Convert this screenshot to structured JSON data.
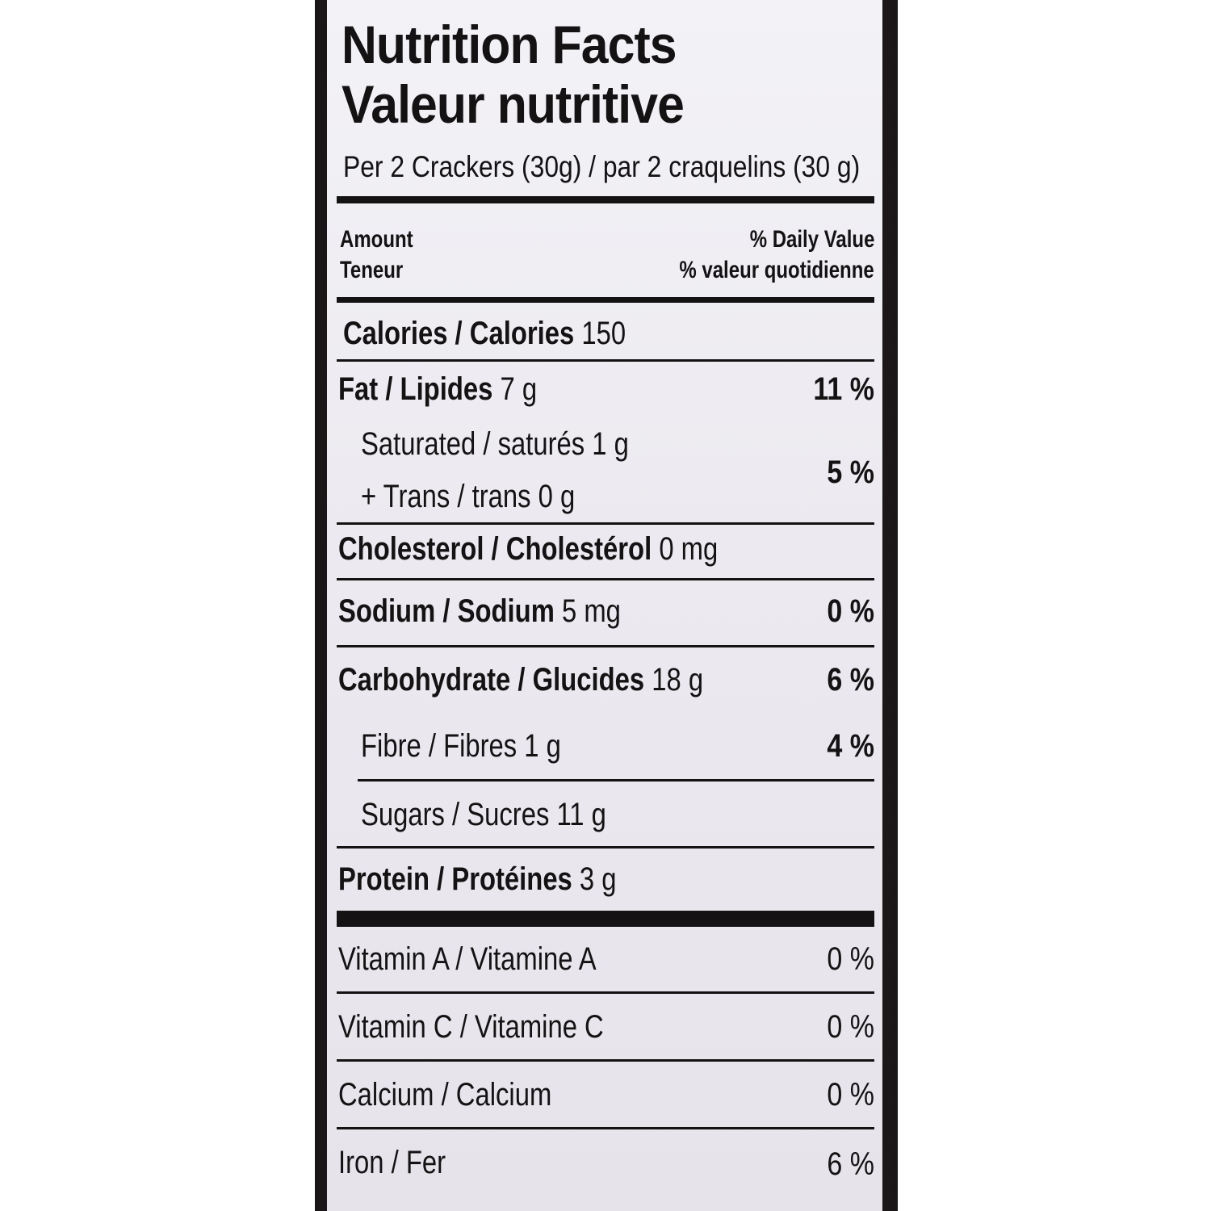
{
  "title_en": "Nutrition Facts",
  "title_fr": "Valeur nutritive",
  "serving": "Per 2 Crackers (30g) / par 2 craquelins (30 g)",
  "header": {
    "amount_en": "Amount",
    "amount_fr": "Teneur",
    "dv_en": "% Daily Value",
    "dv_fr": "% valeur quotidienne"
  },
  "calories": {
    "label": "Calories / Calories",
    "value": "150"
  },
  "fat": {
    "label": "Fat / Lipides",
    "amount": "7 g",
    "dv": "11 %"
  },
  "saturated": {
    "line1": "Saturated / saturés 1 g",
    "line2": "+ Trans / trans 0 g",
    "dv": "5 %"
  },
  "cholesterol": {
    "label": "Cholesterol / Cholestérol",
    "amount": "0 mg"
  },
  "sodium": {
    "label": "Sodium / Sodium",
    "amount": "5 mg",
    "dv": "0 %"
  },
  "carbohydrate": {
    "label": "Carbohydrate / Glucides",
    "amount": "18 g",
    "dv": "6 %"
  },
  "fibre": {
    "label": "Fibre / Fibres 1 g",
    "dv": "4 %"
  },
  "sugars": {
    "label": "Sugars / Sucres 11 g"
  },
  "protein": {
    "label": "Protein / Protéines",
    "amount": "3 g"
  },
  "vitamin_a": {
    "label": "Vitamin A / Vitamine A",
    "dv": "0 %"
  },
  "vitamin_c": {
    "label": "Vitamin C / Vitamine C",
    "dv": "0 %"
  },
  "calcium": {
    "label": "Calcium / Calcium",
    "dv": "0 %"
  },
  "iron": {
    "label": "Iron / Fer",
    "dv": "6 %"
  }
}
